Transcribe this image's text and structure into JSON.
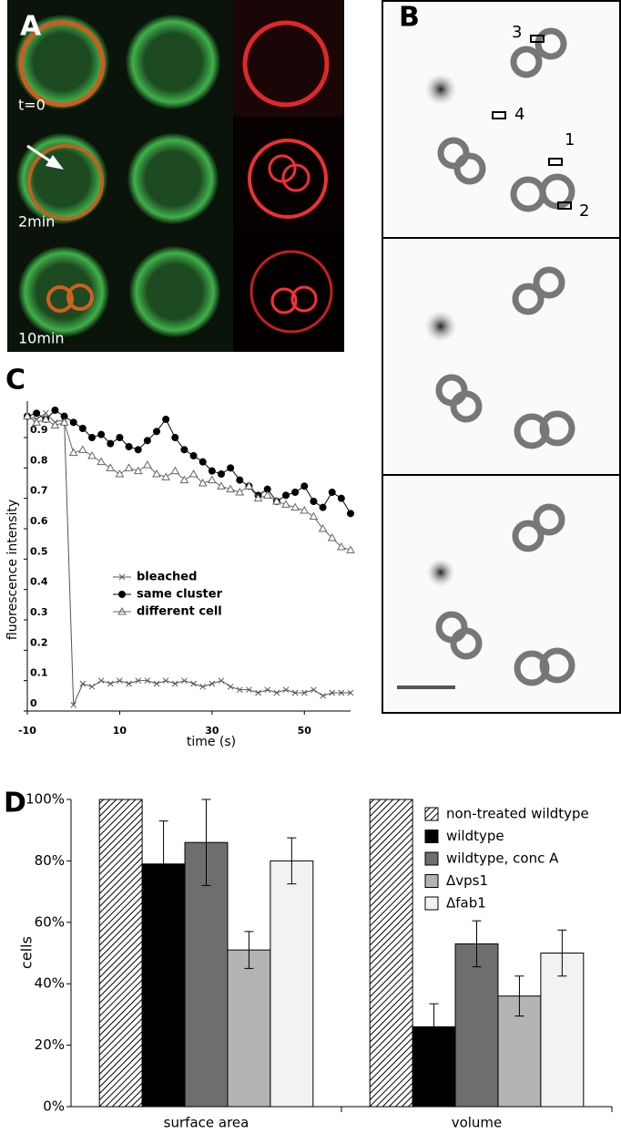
{
  "panels": {
    "A": {
      "label": "A",
      "times": [
        "t=0",
        "2min",
        "10min"
      ]
    },
    "B": {
      "label": "B",
      "roi_labels": [
        "1",
        "2",
        "3",
        "4"
      ]
    },
    "C": {
      "label": "C"
    },
    "D": {
      "label": "D"
    }
  },
  "chart_data": [
    {
      "type": "line",
      "x_label": "time (s)",
      "y_label": "fluorescence intensity",
      "x": [
        -10,
        -8,
        -6,
        -4,
        -2,
        0,
        2,
        4,
        6,
        8,
        10,
        12,
        14,
        16,
        18,
        20,
        22,
        24,
        26,
        28,
        30,
        32,
        34,
        36,
        38,
        40,
        42,
        44,
        46,
        48,
        50,
        52,
        54,
        56,
        58,
        60
      ],
      "xlim": [
        -10,
        60
      ],
      "xticks": [
        -10,
        10,
        30,
        50
      ],
      "ylim": [
        0,
        1.02
      ],
      "yticks": [
        0,
        0.1,
        0.2,
        0.3,
        0.4,
        0.5,
        0.6,
        0.7,
        0.8,
        0.9
      ],
      "series": [
        {
          "name": "bleached",
          "color": "#555555",
          "marker": "x",
          "values": [
            0.97,
            0.96,
            0.98,
            0.95,
            0.96,
            0.02,
            0.09,
            0.08,
            0.1,
            0.09,
            0.1,
            0.09,
            0.1,
            0.1,
            0.09,
            0.1,
            0.09,
            0.1,
            0.09,
            0.08,
            0.09,
            0.1,
            0.08,
            0.07,
            0.07,
            0.06,
            0.07,
            0.06,
            0.07,
            0.06,
            0.06,
            0.07,
            0.05,
            0.06,
            0.06,
            0.06
          ]
        },
        {
          "name": "same cluster",
          "color": "#000000",
          "marker": "o",
          "values": [
            0.97,
            0.98,
            0.96,
            0.99,
            0.97,
            0.95,
            0.93,
            0.9,
            0.91,
            0.88,
            0.9,
            0.87,
            0.86,
            0.89,
            0.92,
            0.96,
            0.9,
            0.86,
            0.84,
            0.82,
            0.79,
            0.78,
            0.8,
            0.76,
            0.74,
            0.71,
            0.73,
            0.69,
            0.71,
            0.72,
            0.74,
            0.69,
            0.67,
            0.72,
            0.7,
            0.65
          ]
        },
        {
          "name": "different cell",
          "color": "#666666",
          "marker": "^",
          "values": [
            0.97,
            0.95,
            0.96,
            0.94,
            0.95,
            0.85,
            0.86,
            0.84,
            0.82,
            0.8,
            0.78,
            0.8,
            0.79,
            0.81,
            0.78,
            0.77,
            0.79,
            0.76,
            0.78,
            0.75,
            0.76,
            0.74,
            0.73,
            0.72,
            0.74,
            0.7,
            0.71,
            0.69,
            0.68,
            0.67,
            0.66,
            0.64,
            0.6,
            0.57,
            0.54,
            0.53
          ]
        }
      ]
    },
    {
      "type": "bar",
      "y_label": "cells",
      "categories": [
        "surface area",
        "volume"
      ],
      "ylim": [
        0,
        100
      ],
      "yticks": [
        {
          "value": 0,
          "label": "0%"
        },
        {
          "value": 20,
          "label": "20%"
        },
        {
          "value": 40,
          "label": "40%"
        },
        {
          "value": 60,
          "label": "60%"
        },
        {
          "value": 80,
          "label": "80%"
        },
        {
          "value": 100,
          "label": "100%"
        }
      ],
      "series": [
        {
          "name": "non-treated wildtype",
          "color": "#ffffff",
          "hatch": true,
          "values": [
            100,
            100
          ]
        },
        {
          "name": "wildtype",
          "color": "#000000",
          "values": [
            79,
            26
          ],
          "errors": [
            14,
            7.5
          ]
        },
        {
          "name": "wildtype, conc A",
          "color": "#6e6e6e",
          "values": [
            86,
            53
          ],
          "errors": [
            14,
            7.5
          ]
        },
        {
          "name": "Δvps1",
          "color": "#b4b4b4",
          "values": [
            51,
            36
          ],
          "errors": [
            6,
            6.5
          ]
        },
        {
          "name": "Δfab1",
          "color": "#f2f2f2",
          "values": [
            80,
            50
          ],
          "errors": [
            7.5,
            7.5
          ]
        }
      ]
    }
  ]
}
